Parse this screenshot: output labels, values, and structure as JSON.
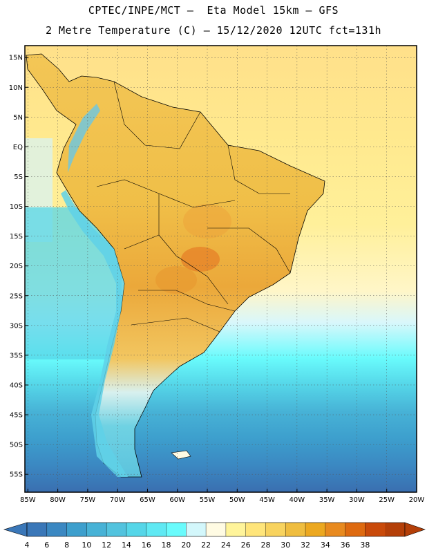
{
  "header": {
    "line1": "CPTEC/INPE/MCT –  Eta Model 15km – GFS",
    "line2": "2 Metre Temperature (C) – 15/12/2020 12UTC fct=131h"
  },
  "map": {
    "lat_labels": [
      "15N",
      "10N",
      "5N",
      "EQ",
      "5S",
      "10S",
      "15S",
      "20S",
      "25S",
      "30S",
      "35S",
      "40S",
      "45S",
      "50S",
      "55S"
    ],
    "lon_labels": [
      "85W",
      "80W",
      "75W",
      "70W",
      "65W",
      "60W",
      "55W",
      "50W",
      "45W",
      "40W",
      "35W",
      "30W",
      "25W",
      "20W"
    ],
    "lat_values": [
      15,
      10,
      5,
      0,
      -5,
      -10,
      -15,
      -20,
      -25,
      -30,
      -35,
      -40,
      -45,
      -50,
      -55
    ],
    "lon_values": [
      -85,
      -80,
      -75,
      -70,
      -65,
      -60,
      -55,
      -50,
      -45,
      -40,
      -35,
      -30,
      -25,
      -20
    ],
    "lat_range": [
      -58,
      17
    ],
    "lon_range": [
      -85.5,
      -20
    ],
    "grid": true
  },
  "colorbar": {
    "labels": [
      "4",
      "6",
      "8",
      "10",
      "12",
      "14",
      "16",
      "18",
      "20",
      "22",
      "24",
      "26",
      "28",
      "30",
      "32",
      "34",
      "36",
      "38"
    ],
    "colors": [
      "#3a77b8",
      "#3b88c2",
      "#3d9fcd",
      "#47b2d6",
      "#52c3de",
      "#55d6e8",
      "#5fe9f3",
      "#69fbfc",
      "#d3f7fb",
      "#fffbe3",
      "#fff49a",
      "#ffe57a",
      "#f8d35e",
      "#efbd3f",
      "#eca820",
      "#e88a1f",
      "#de6a10",
      "#c94a0a",
      "#b43f08"
    ],
    "colors_low": "#3a77b8",
    "colors_high": "#b43f08"
  }
}
